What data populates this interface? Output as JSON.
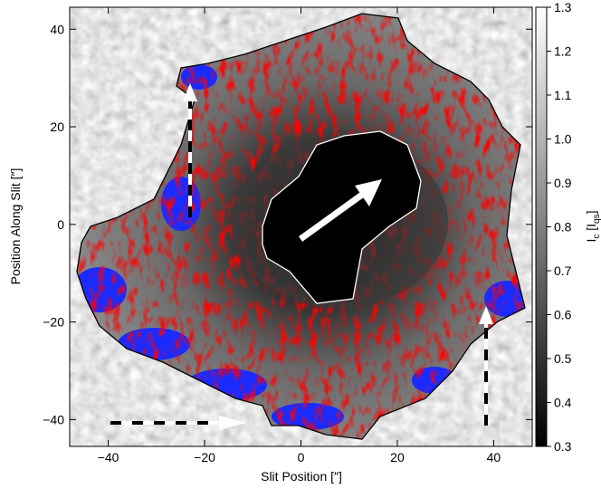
{
  "chart_data": {
    "type": "image",
    "xlabel": "Slit Position [″]",
    "ylabel": "Position Along Slit [″]",
    "xlim": [
      -48,
      48
    ],
    "ylim": [
      -45.5,
      44.5
    ],
    "xticks": [
      {
        "value": -40,
        "label": "−40"
      },
      {
        "value": -20,
        "label": "−20"
      },
      0,
      20,
      40
    ],
    "yticks": [
      {
        "value": -40,
        "label": "−40"
      },
      {
        "value": -20,
        "label": "−20"
      },
      0,
      20,
      40
    ],
    "colorbar_lim": [
      0.3,
      1.3
    ],
    "colorbar_ticks": [
      0.3,
      0.4,
      0.5,
      0.6,
      0.7,
      0.8,
      0.9,
      {
        "value": 1.0,
        "label": "1.0"
      },
      1.1,
      1.2,
      1.3
    ],
    "colorbar_label_parts": [
      "I",
      "c",
      " [I",
      "qs",
      "]"
    ]
  }
}
